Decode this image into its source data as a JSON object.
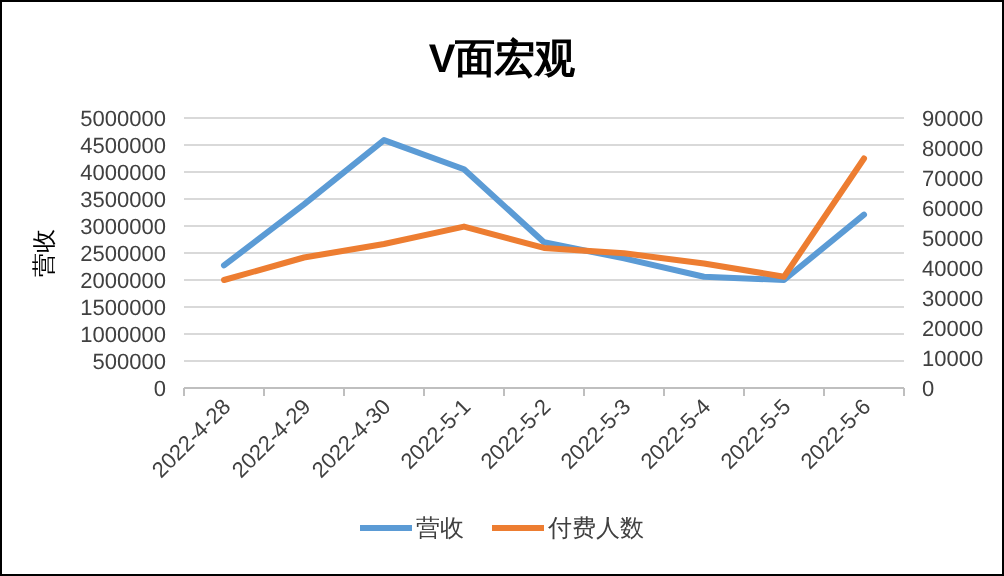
{
  "chart_data": {
    "type": "line",
    "title": "V面宏观",
    "ylabel": "营收",
    "categories": [
      "2022-4-28",
      "2022-4-29",
      "2022-4-30",
      "2022-5-1",
      "2022-5-2",
      "2022-5-3",
      "2022-5-4",
      "2022-5-5",
      "2022-5-6"
    ],
    "series": [
      {
        "name": "营收",
        "color": "#5b9bd5",
        "values": [
          2270000,
          3400000,
          4590000,
          4050000,
          2700000,
          2400000,
          2060000,
          2000000,
          3210000
        ]
      },
      {
        "name": "付费人数",
        "color": "#ed7d31",
        "axis": "y2",
        "values": [
          36000,
          43500,
          48000,
          53800,
          46700,
          44900,
          41500,
          37100,
          76500
        ]
      }
    ],
    "ylim": [
      0,
      5000000
    ],
    "yticks": [
      0,
      500000,
      1000000,
      1500000,
      2000000,
      2500000,
      3000000,
      3500000,
      4000000,
      4500000,
      5000000
    ],
    "y2lim": [
      0,
      90000
    ],
    "y2ticks": [
      0,
      10000,
      20000,
      30000,
      40000,
      50000,
      60000,
      70000,
      80000,
      90000
    ],
    "grid": "y",
    "legend": "bottom"
  }
}
